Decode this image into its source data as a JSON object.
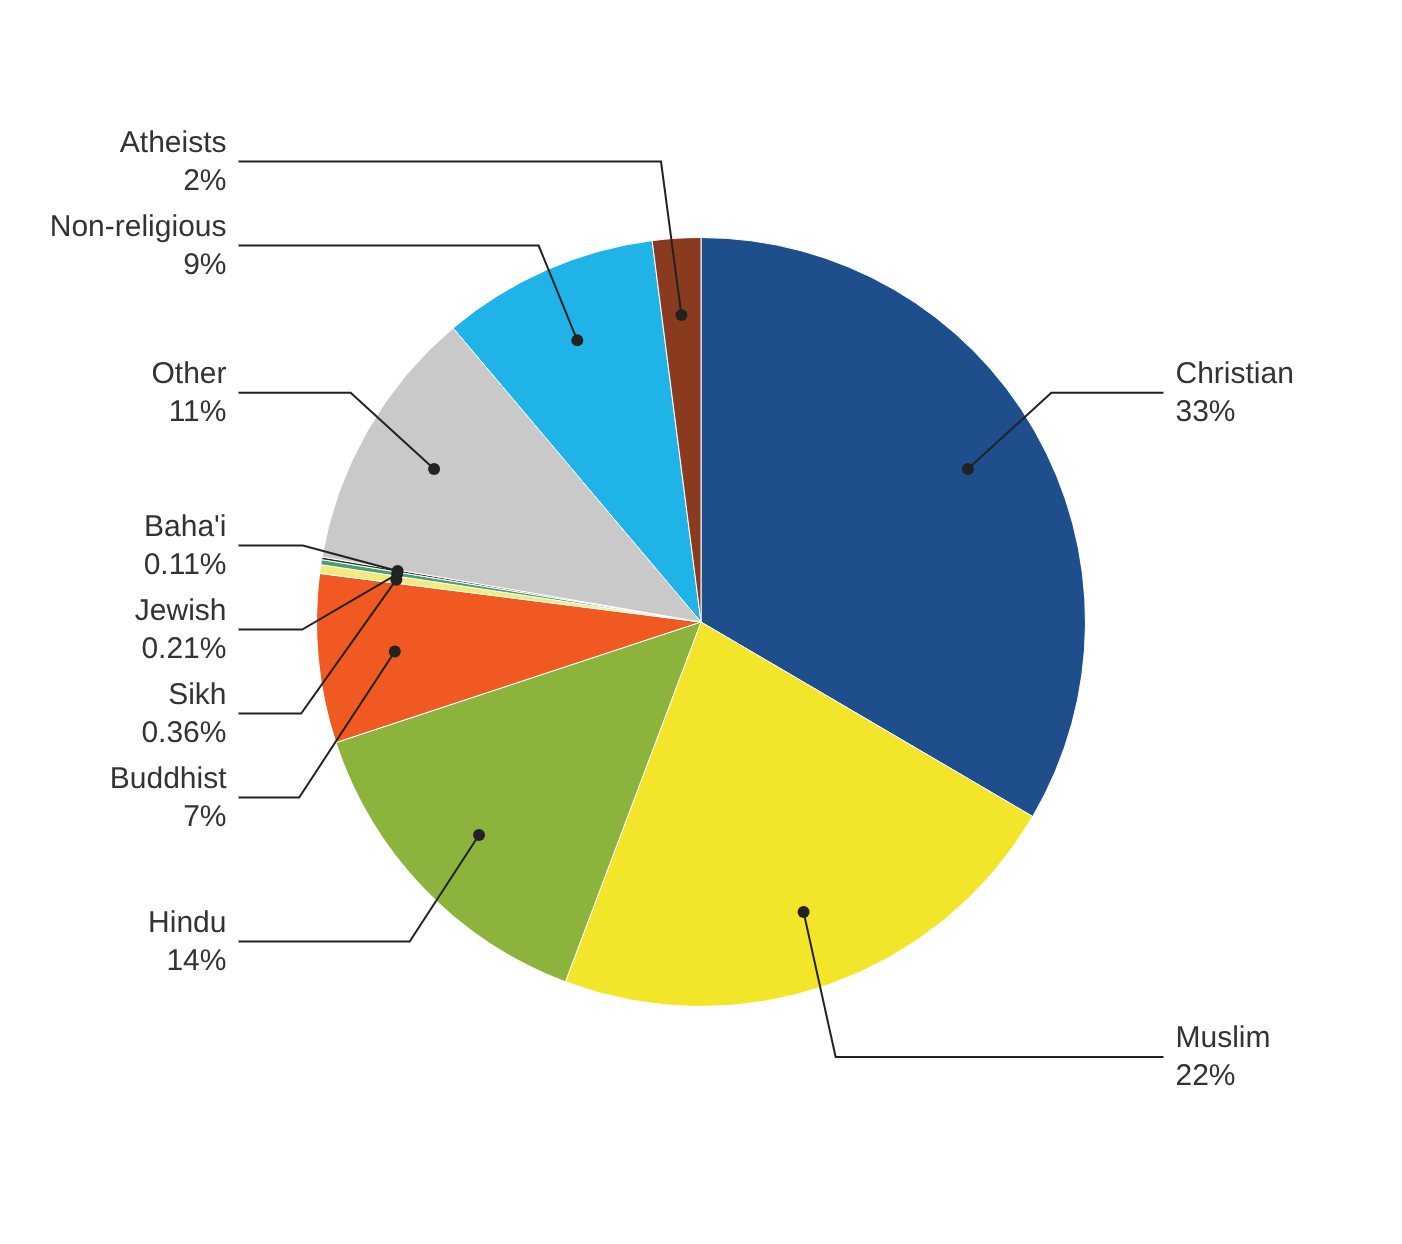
{
  "chart_data": {
    "type": "pie",
    "categories": [
      "Christian",
      "Muslim",
      "Hindu",
      "Buddhist",
      "Sikh",
      "Jewish",
      "Baha'i",
      "Other",
      "Non-religious",
      "Atheists"
    ],
    "values": [
      33,
      22,
      14,
      7,
      0.36,
      0.21,
      0.11,
      11,
      9,
      2
    ],
    "value_labels": [
      "33%",
      "22%",
      "14%",
      "7%",
      "0.36%",
      "0.21%",
      "0.11%",
      "11%",
      "9%",
      "2%"
    ],
    "colors": [
      "#1f4e8c",
      "#f3e52a",
      "#8cb43c",
      "#f05a22",
      "#f2ea7a",
      "#4a9f6a",
      "#2a2a2a",
      "#c9c9c9",
      "#1fb3e8",
      "#8a3b1f"
    ],
    "legend": false
  }
}
